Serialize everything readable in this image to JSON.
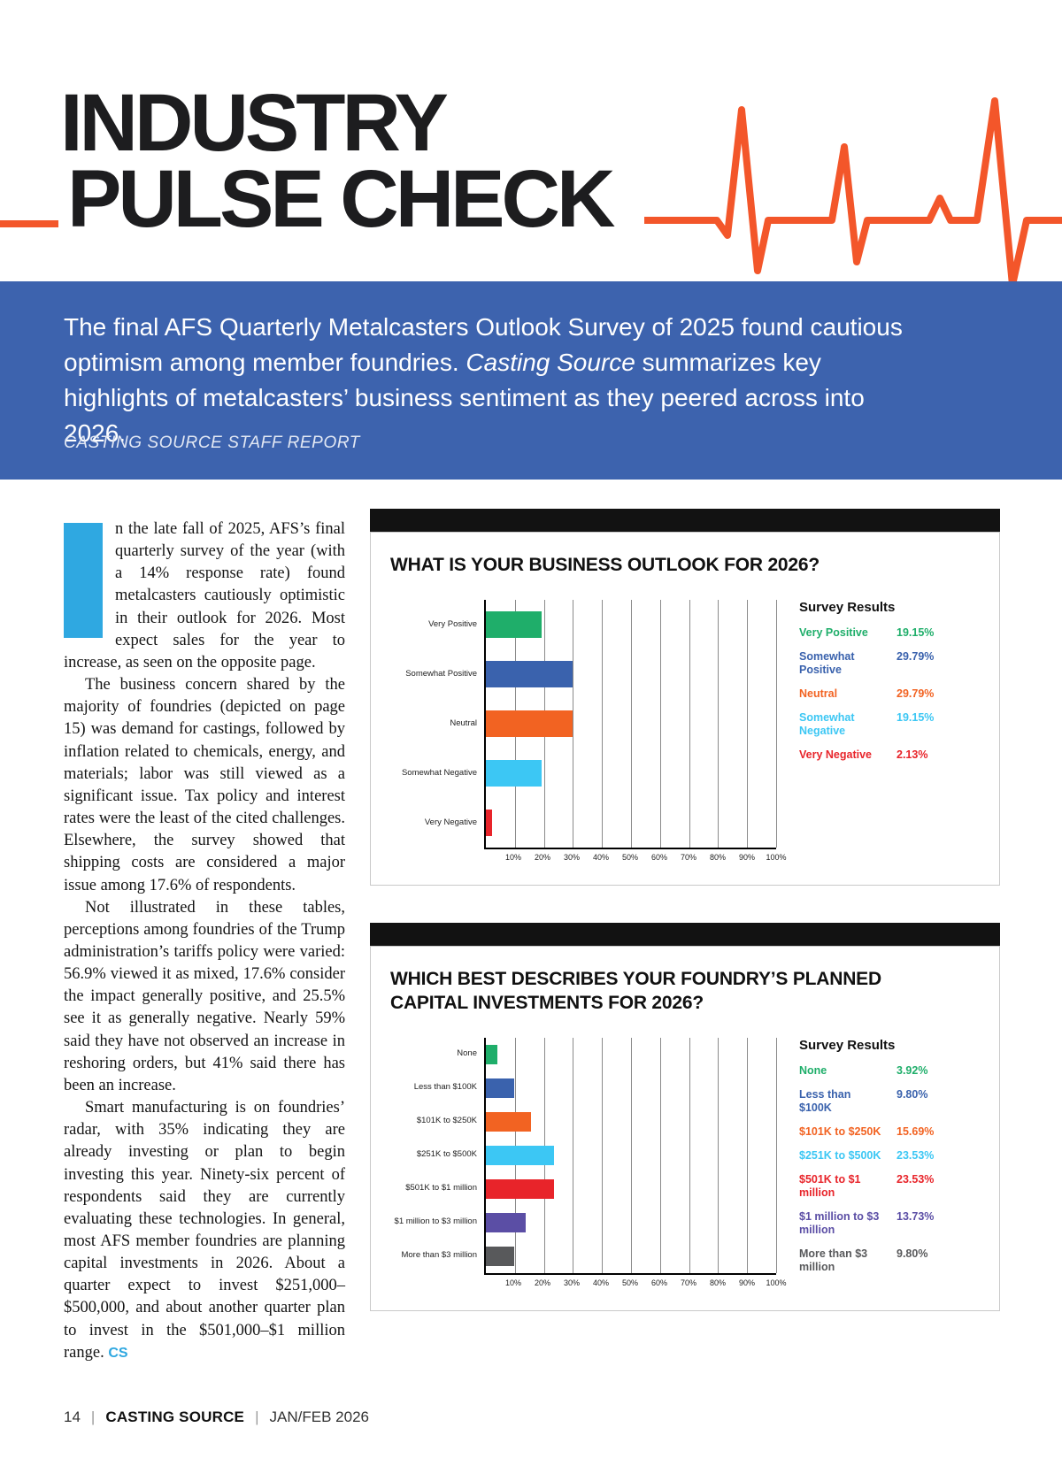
{
  "masthead": {
    "title_line1": "INDUSTRY",
    "title_line2": "PULSE CHECK"
  },
  "intro": {
    "pre": "The final AFS Quarterly Metalcasters Outlook Survey of 2025 found cautious optimism among member foundries. ",
    "italic": "Casting Source",
    "post": " summarizes key highlights of metalcasters’ business sentiment as they peered across into 2026.",
    "byline": "CASTING SOURCE STAFF REPORT"
  },
  "article": {
    "dropcap": "I",
    "para1": "n the late fall of 2025, AFS’s final quarterly survey of the year (with a 14% response rate) found metalcasters cautiously optimistic in their outlook for 2026. Most expect sales for the year to increase, as seen on the opposite page.",
    "para2": "The business concern shared by the majority of foundries (depicted on page 15) was demand for castings, followed by inflation related to chemicals, energy, and materials; labor was still viewed as a significant issue. Tax policy and interest rates were the least of the cited challenges. Elsewhere, the survey showed that shipping costs are considered a major issue among 17.6% of respondents.",
    "para3": "Not illustrated in these tables, perceptions among foundries of the Trump administration’s tariffs policy were varied: 56.9% viewed it as mixed, 17.6% consider the impact generally positive, and 25.5% see it as generally negative. Nearly 59% said they have not observed an increase in reshoring orders, but 41% said there has been an increase.",
    "para4": "Smart manufacturing is on foundries’ radar, with 35% indicating they are already investing or plan to begin investing this year. Ninety-six percent of respondents said they are currently evaluating these technologies. In general, most AFS member foundries are planning capital investments in 2026. About a quarter expect to invest $251,000–$500,000, and about another quarter plan to invest in the $501,000–$1 million range. ",
    "end_mark": "CS"
  },
  "chart_data": [
    {
      "type": "bar",
      "orientation": "horizontal",
      "title": "WHAT IS YOUR BUSINESS OUTLOOK FOR 2026?",
      "legend_title": "Survey Results",
      "categories": [
        "Very Positive",
        "Somewhat Positive",
        "Neutral",
        "Somewhat Negative",
        "Very Negative"
      ],
      "values": [
        19.15,
        29.79,
        29.79,
        19.15,
        2.13
      ],
      "value_labels": [
        "19.15%",
        "29.79%",
        "29.79%",
        "19.15%",
        "2.13%"
      ],
      "colors": [
        "#1fae6a",
        "#3a62ad",
        "#f26322",
        "#3cc7f4",
        "#e8242a"
      ],
      "xlim": [
        0,
        100
      ],
      "xticks": [
        "10%",
        "20%",
        "30%",
        "40%",
        "50%",
        "60%",
        "70%",
        "80%",
        "90%",
        "100%"
      ],
      "grid": true,
      "legend_position": "right"
    },
    {
      "type": "bar",
      "orientation": "horizontal",
      "title": "WHICH BEST DESCRIBES YOUR FOUNDRY’S PLANNED CAPITAL INVESTMENTS FOR 2026?",
      "legend_title": "Survey Results",
      "categories": [
        "None",
        "Less than $100K",
        "$101K to $250K",
        "$251K to $500K",
        "$501K to $1 million",
        "$1 million to $3 million",
        "More than $3 million"
      ],
      "values": [
        3.92,
        9.8,
        15.69,
        23.53,
        23.53,
        13.73,
        9.8
      ],
      "value_labels": [
        "3.92%",
        "9.80%",
        "15.69%",
        "23.53%",
        "23.53%",
        "13.73%",
        "9.80%"
      ],
      "colors": [
        "#1fae6a",
        "#3a62ad",
        "#f26322",
        "#3cc7f4",
        "#e8242a",
        "#5b4ea5",
        "#58595b"
      ],
      "xlim": [
        0,
        100
      ],
      "xticks": [
        "10%",
        "20%",
        "30%",
        "40%",
        "50%",
        "60%",
        "70%",
        "80%",
        "90%",
        "100%"
      ],
      "grid": true,
      "legend_position": "right"
    }
  ],
  "footer": {
    "page_number": "14",
    "separator": "|",
    "magazine": "CASTING SOURCE",
    "issue": "JAN/FEB 2026"
  },
  "colors": {
    "accent_orange": "#f3562a",
    "band_blue": "#3d63ae",
    "dropcap_blue": "#2fa8e1"
  }
}
